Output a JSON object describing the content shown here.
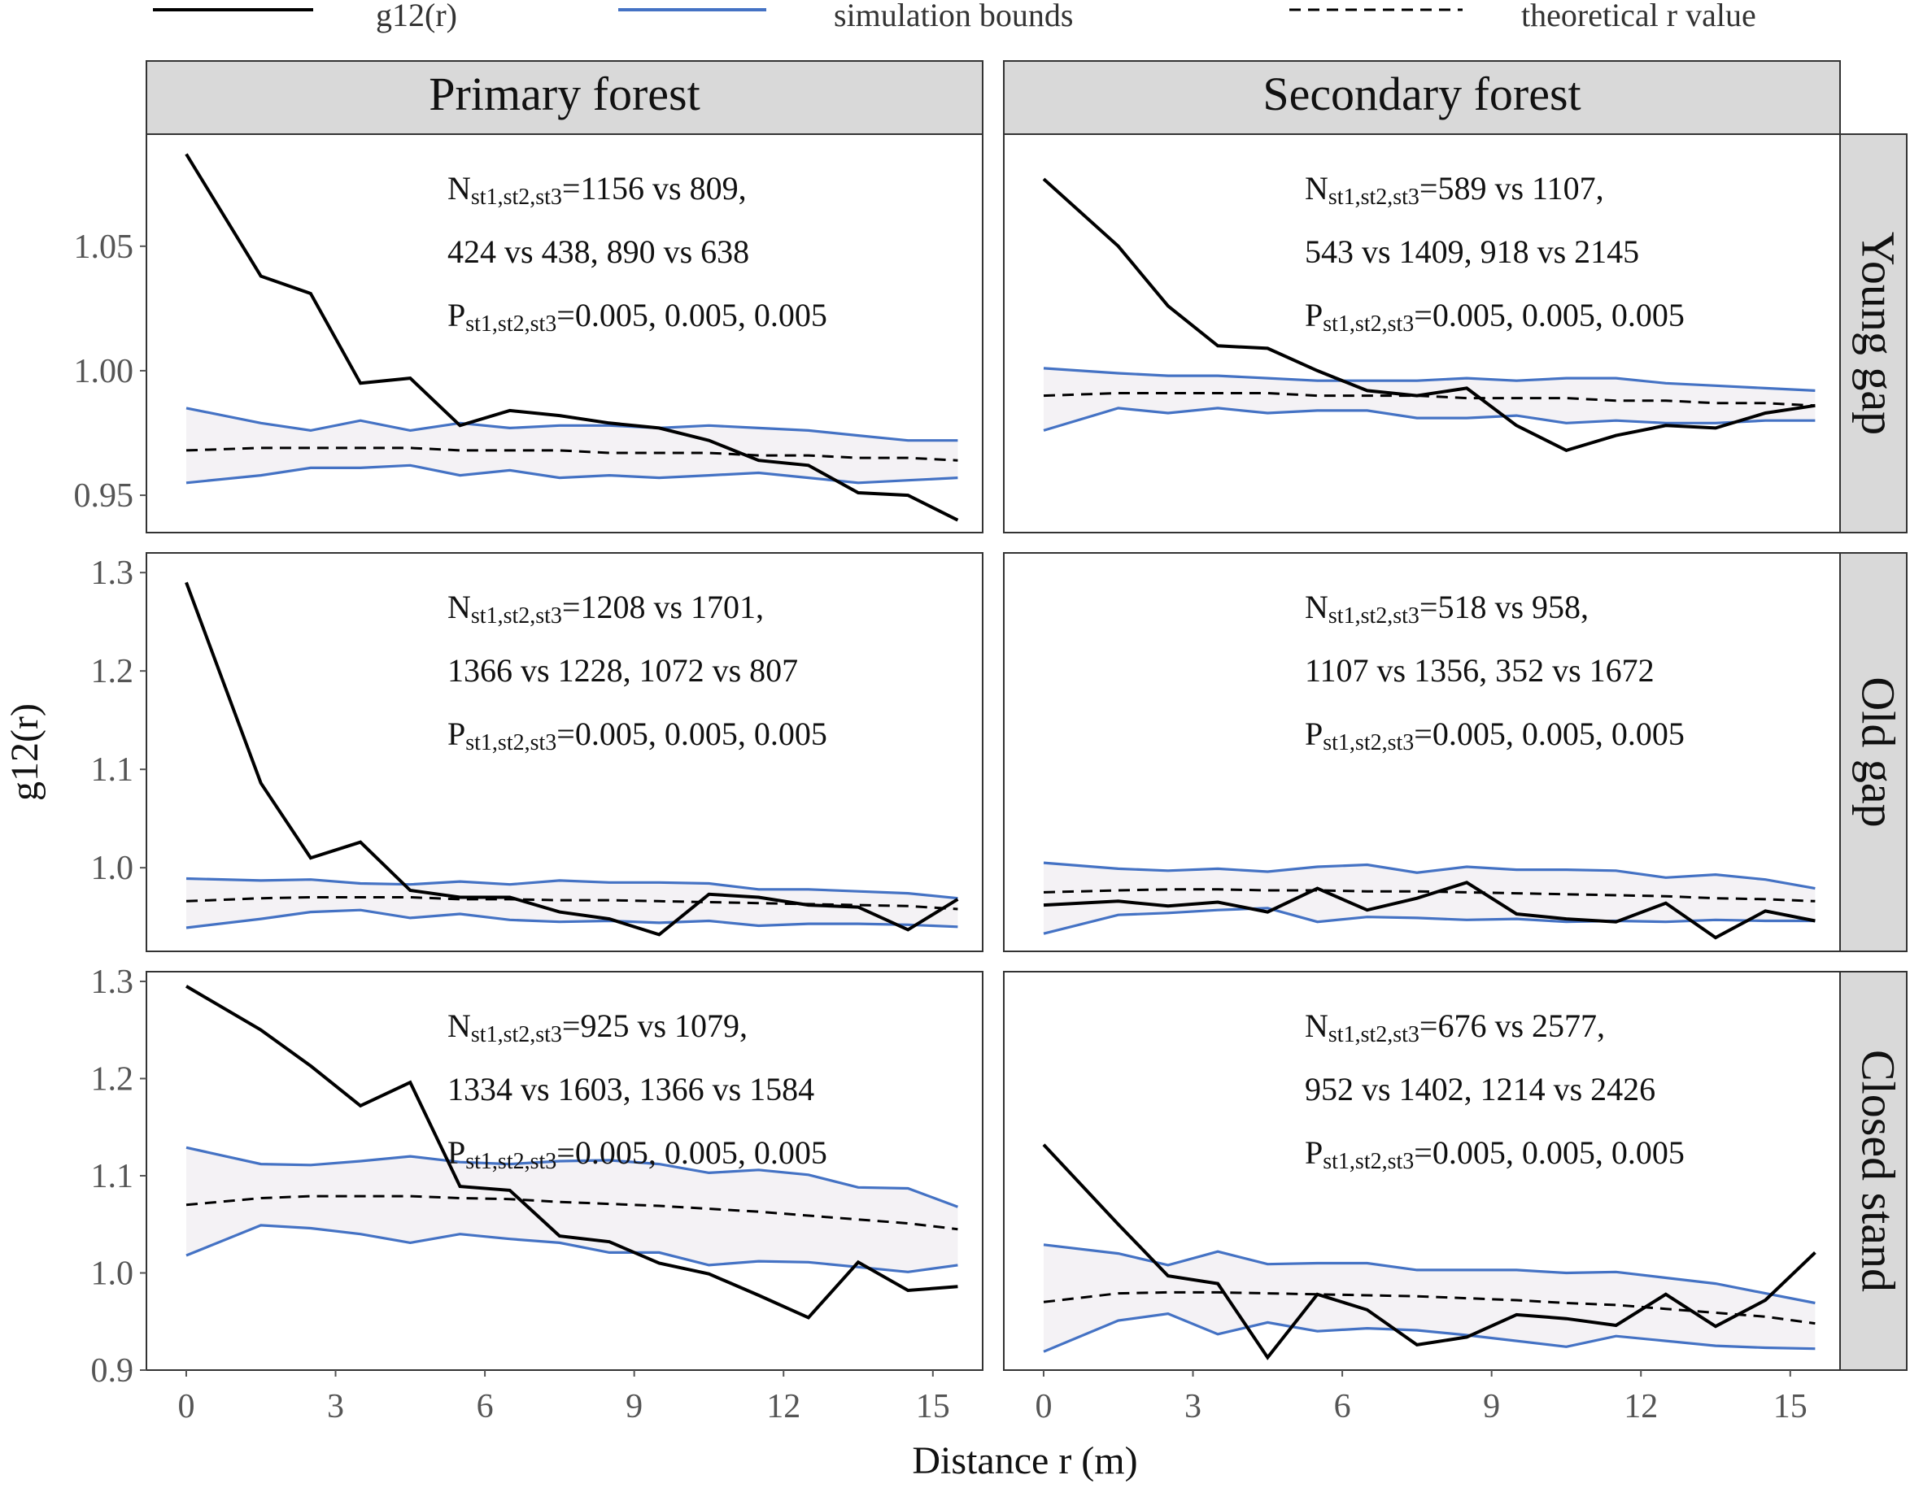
{
  "legend": [
    {
      "label": "g12(r)",
      "style": "solid-black"
    },
    {
      "label": "simulation bounds",
      "style": "solid-blue"
    },
    {
      "label": "theoretical r value",
      "style": "dashed-black"
    }
  ],
  "colors": {
    "observed": "#000000",
    "bounds": "#4472c4",
    "envelope_fill": "#ece9ee",
    "strip": "#d9d9d9"
  },
  "x_axis": {
    "title": "Distance r (m)",
    "ticks": [
      0,
      3,
      6,
      9,
      12,
      15
    ],
    "range": [
      -0.8,
      16
    ]
  },
  "y_axis": {
    "title": "g12(r)"
  },
  "columns": [
    "Primary forest",
    "Secondary forest"
  ],
  "rows": [
    {
      "label": "Young gap",
      "ylim": [
        0.935,
        1.095
      ],
      "yticks": [
        "0.95",
        "1.00",
        "1.05"
      ],
      "ytick_values": [
        0.95,
        1.0,
        1.05
      ]
    },
    {
      "label": "Old gap",
      "ylim": [
        0.915,
        1.32
      ],
      "yticks": [
        "1.0",
        "1.1",
        "1.2",
        "1.3"
      ],
      "ytick_values": [
        1.0,
        1.1,
        1.2,
        1.3
      ]
    },
    {
      "label": "Closed stand",
      "ylim": [
        0.9,
        1.31
      ],
      "yticks": [
        "0.9",
        "1.0",
        "1.1",
        "1.2",
        "1.3"
      ],
      "ytick_values": [
        0.9,
        1.0,
        1.1,
        1.2,
        1.3
      ]
    }
  ],
  "chart_data": {
    "type": "line",
    "facets": "3 rows x 2 columns",
    "x": [
      0,
      1.5,
      2.5,
      3.5,
      4.5,
      5.5,
      6.5,
      7.5,
      8.5,
      9.5,
      10.5,
      11.5,
      12.5,
      13.5,
      14.5,
      15.5
    ],
    "panels": [
      {
        "column": "Primary forest",
        "row": "Young gap",
        "annotation": {
          "n_line1": "=1156 vs 809,",
          "n_line2": "424 vs 438, 890 vs 638",
          "p_line": "=0.005, 0.005, 0.005"
        },
        "series": [
          {
            "name": "g12(r)",
            "values": [
              1.087,
              1.038,
              1.031,
              0.995,
              0.997,
              0.978,
              0.984,
              0.982,
              0.979,
              0.977,
              0.972,
              0.964,
              0.962,
              0.951,
              0.95,
              0.94
            ]
          },
          {
            "name": "upper bound",
            "values": [
              0.985,
              0.979,
              0.976,
              0.98,
              0.976,
              0.979,
              0.977,
              0.978,
              0.978,
              0.977,
              0.978,
              0.977,
              0.976,
              0.974,
              0.972,
              0.972
            ]
          },
          {
            "name": "lower bound",
            "values": [
              0.955,
              0.958,
              0.961,
              0.961,
              0.962,
              0.958,
              0.96,
              0.957,
              0.958,
              0.957,
              0.958,
              0.959,
              0.957,
              0.955,
              0.956,
              0.957
            ]
          },
          {
            "name": "theoretical",
            "values": [
              0.968,
              0.969,
              0.969,
              0.969,
              0.969,
              0.968,
              0.968,
              0.968,
              0.967,
              0.967,
              0.967,
              0.966,
              0.966,
              0.965,
              0.965,
              0.964
            ]
          }
        ]
      },
      {
        "column": "Secondary forest",
        "row": "Young gap",
        "annotation": {
          "n_line1": "=589 vs 1107,",
          "n_line2": "543 vs 1409, 918 vs 2145",
          "p_line": "=0.005, 0.005, 0.005"
        },
        "series": [
          {
            "name": "g12(r)",
            "values": [
              1.077,
              1.05,
              1.026,
              1.01,
              1.009,
              1.0,
              0.992,
              0.99,
              0.993,
              0.978,
              0.968,
              0.974,
              0.978,
              0.977,
              0.983,
              0.986
            ]
          },
          {
            "name": "upper bound",
            "values": [
              1.001,
              0.999,
              0.998,
              0.998,
              0.997,
              0.996,
              0.996,
              0.996,
              0.997,
              0.996,
              0.997,
              0.997,
              0.995,
              0.994,
              0.993,
              0.992
            ]
          },
          {
            "name": "lower bound",
            "values": [
              0.976,
              0.985,
              0.983,
              0.985,
              0.983,
              0.984,
              0.984,
              0.981,
              0.981,
              0.982,
              0.979,
              0.98,
              0.979,
              0.979,
              0.98,
              0.98
            ]
          },
          {
            "name": "theoretical",
            "values": [
              0.99,
              0.991,
              0.991,
              0.991,
              0.991,
              0.99,
              0.99,
              0.99,
              0.989,
              0.989,
              0.989,
              0.988,
              0.988,
              0.987,
              0.987,
              0.986
            ]
          }
        ]
      },
      {
        "column": "Primary forest",
        "row": "Old gap",
        "annotation": {
          "n_line1": "=1208 vs 1701,",
          "n_line2": "1366 vs 1228, 1072 vs 807",
          "p_line": "=0.005, 0.005, 0.005"
        },
        "series": [
          {
            "name": "g12(r)",
            "values": [
              1.29,
              1.086,
              1.01,
              1.026,
              0.977,
              0.97,
              0.97,
              0.955,
              0.948,
              0.932,
              0.973,
              0.97,
              0.962,
              0.96,
              0.937,
              0.968
            ]
          },
          {
            "name": "upper bound",
            "values": [
              0.989,
              0.987,
              0.988,
              0.984,
              0.983,
              0.986,
              0.983,
              0.987,
              0.985,
              0.985,
              0.984,
              0.978,
              0.978,
              0.976,
              0.974,
              0.969
            ]
          },
          {
            "name": "lower bound",
            "values": [
              0.939,
              0.948,
              0.955,
              0.957,
              0.949,
              0.953,
              0.947,
              0.945,
              0.946,
              0.944,
              0.946,
              0.941,
              0.943,
              0.943,
              0.942,
              0.94
            ]
          },
          {
            "name": "theoretical",
            "values": [
              0.966,
              0.969,
              0.97,
              0.97,
              0.97,
              0.968,
              0.968,
              0.967,
              0.967,
              0.966,
              0.965,
              0.964,
              0.963,
              0.962,
              0.961,
              0.958
            ]
          }
        ]
      },
      {
        "column": "Secondary forest",
        "row": "Old gap",
        "annotation": {
          "n_line1": "=518 vs 958,",
          "n_line2": "1107 vs 1356, 352 vs 1672",
          "p_line": "=0.005, 0.005, 0.005"
        },
        "series": [
          {
            "name": "g12(r)",
            "values": [
              0.962,
              0.966,
              0.961,
              0.965,
              0.955,
              0.979,
              0.957,
              0.969,
              0.985,
              0.953,
              0.948,
              0.945,
              0.964,
              0.929,
              0.956,
              0.946
            ]
          },
          {
            "name": "upper bound",
            "values": [
              1.005,
              0.999,
              0.997,
              0.999,
              0.996,
              1.001,
              1.003,
              0.995,
              1.001,
              0.998,
              0.998,
              0.997,
              0.99,
              0.993,
              0.988,
              0.979
            ]
          },
          {
            "name": "lower bound",
            "values": [
              0.933,
              0.952,
              0.954,
              0.957,
              0.959,
              0.945,
              0.95,
              0.949,
              0.947,
              0.948,
              0.945,
              0.946,
              0.945,
              0.947,
              0.946,
              0.946
            ]
          },
          {
            "name": "theoretical",
            "values": [
              0.975,
              0.977,
              0.978,
              0.978,
              0.977,
              0.977,
              0.976,
              0.976,
              0.975,
              0.974,
              0.973,
              0.972,
              0.971,
              0.969,
              0.968,
              0.966
            ]
          }
        ]
      },
      {
        "column": "Primary forest",
        "row": "Closed stand",
        "annotation": {
          "n_line1": "=925 vs 1079,",
          "n_line2": "1334 vs 1603, 1366 vs 1584",
          "p_line": "=0.005, 0.005, 0.005"
        },
        "series": [
          {
            "name": "g12(r)",
            "values": [
              1.295,
              1.25,
              1.213,
              1.172,
              1.196,
              1.089,
              1.085,
              1.038,
              1.032,
              1.01,
              0.999,
              0.977,
              0.954,
              1.011,
              0.982,
              0.986
            ]
          },
          {
            "name": "upper bound",
            "values": [
              1.129,
              1.112,
              1.111,
              1.115,
              1.12,
              1.114,
              1.112,
              1.115,
              1.116,
              1.112,
              1.103,
              1.106,
              1.101,
              1.088,
              1.087,
              1.068
            ]
          },
          {
            "name": "lower bound",
            "values": [
              1.018,
              1.049,
              1.046,
              1.04,
              1.031,
              1.04,
              1.035,
              1.031,
              1.021,
              1.021,
              1.008,
              1.012,
              1.011,
              1.006,
              1.001,
              1.008
            ]
          },
          {
            "name": "theoretical",
            "values": [
              1.07,
              1.077,
              1.079,
              1.079,
              1.079,
              1.077,
              1.076,
              1.073,
              1.071,
              1.069,
              1.066,
              1.063,
              1.059,
              1.055,
              1.051,
              1.045
            ]
          }
        ]
      },
      {
        "column": "Secondary forest",
        "row": "Closed stand",
        "annotation": {
          "n_line1": "=676 vs 2577,",
          "n_line2": "952 vs 1402, 1214 vs 2426",
          "p_line": "=0.005, 0.005, 0.005"
        },
        "series": [
          {
            "name": "g12(r)",
            "values": [
              1.132,
              1.05,
              0.997,
              0.989,
              0.913,
              0.978,
              0.962,
              0.926,
              0.934,
              0.957,
              0.953,
              0.946,
              0.978,
              0.945,
              0.972,
              1.021
            ]
          },
          {
            "name": "upper bound",
            "values": [
              1.029,
              1.02,
              1.008,
              1.022,
              1.009,
              1.01,
              1.01,
              1.003,
              1.003,
              1.003,
              1.0,
              1.001,
              0.995,
              0.989,
              0.979,
              0.969
            ]
          },
          {
            "name": "lower bound",
            "values": [
              0.919,
              0.951,
              0.958,
              0.937,
              0.949,
              0.94,
              0.943,
              0.941,
              0.936,
              0.93,
              0.924,
              0.935,
              0.93,
              0.925,
              0.923,
              0.922
            ]
          },
          {
            "name": "theoretical",
            "values": [
              0.97,
              0.979,
              0.98,
              0.98,
              0.979,
              0.978,
              0.977,
              0.976,
              0.974,
              0.972,
              0.969,
              0.967,
              0.963,
              0.959,
              0.955,
              0.948
            ]
          }
        ]
      }
    ]
  }
}
